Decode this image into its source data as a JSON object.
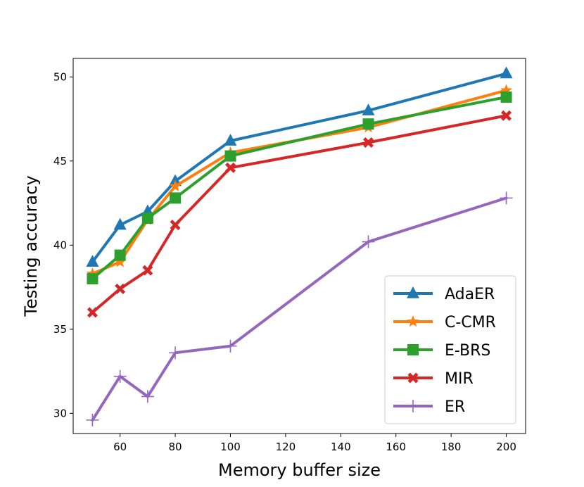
{
  "chart_data": {
    "type": "line",
    "title": "",
    "xlabel": "Memory buffer size",
    "ylabel": "Testing accuracy",
    "xlim": [
      43,
      207
    ],
    "ylim": [
      28.8,
      51.1
    ],
    "x_ticks": [
      60,
      80,
      100,
      120,
      140,
      160,
      180,
      200
    ],
    "y_ticks": [
      30,
      35,
      40,
      45,
      50
    ],
    "x": [
      50,
      60,
      70,
      80,
      100,
      150,
      200
    ],
    "legend_position": "lower-right",
    "series": [
      {
        "name": "AdaER",
        "color": "#1f77b4",
        "marker": "triangle",
        "values": [
          39.0,
          41.2,
          42.0,
          43.8,
          46.2,
          48.0,
          50.2
        ]
      },
      {
        "name": "C-CMR",
        "color": "#ff7f0e",
        "marker": "star",
        "values": [
          38.3,
          39.0,
          41.5,
          43.5,
          45.5,
          47.0,
          49.2
        ]
      },
      {
        "name": "E-BRS",
        "color": "#2ca02c",
        "marker": "square",
        "values": [
          38.0,
          39.4,
          41.6,
          42.8,
          45.3,
          47.2,
          48.8
        ]
      },
      {
        "name": "MIR",
        "color": "#d62728",
        "marker": "x",
        "values": [
          36.0,
          37.4,
          38.5,
          41.2,
          44.6,
          46.1,
          47.7
        ]
      },
      {
        "name": "ER",
        "color": "#9467bd",
        "marker": "plus",
        "values": [
          29.6,
          32.2,
          31.0,
          33.6,
          34.0,
          40.2,
          42.8
        ]
      }
    ]
  }
}
